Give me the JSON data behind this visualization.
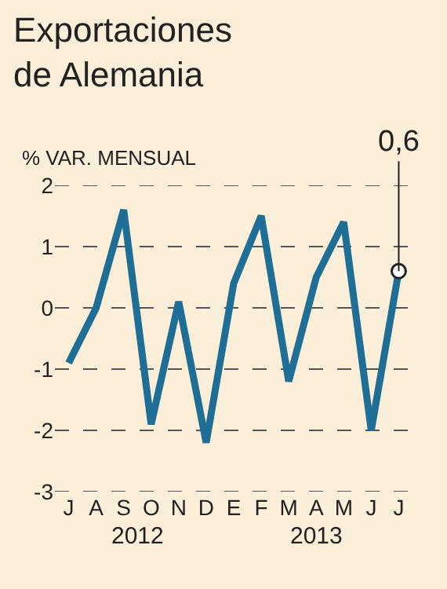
{
  "chart_data": {
    "type": "line",
    "title": "Exportaciones de Alemania",
    "ylabel": "% VAR. MENSUAL",
    "categories": [
      "J",
      "A",
      "S",
      "O",
      "N",
      "D",
      "E",
      "F",
      "M",
      "A",
      "M",
      "J",
      "J"
    ],
    "series": [
      {
        "color": "#1f6e95",
        "values": [
          -0.9,
          0.0,
          1.6,
          -1.9,
          0.1,
          -2.2,
          0.4,
          1.5,
          -1.2,
          0.5,
          1.4,
          -2.0,
          0.6
        ]
      }
    ],
    "ylim": [
      -3,
      2
    ],
    "yticks": [
      -3,
      -2,
      -1,
      0,
      1,
      2
    ],
    "grid": "y",
    "line_style": "solid",
    "marker": "none",
    "annotations": [
      {
        "text": "0,6",
        "y": 0.6
      },
      "2012",
      "2013"
    ]
  }
}
